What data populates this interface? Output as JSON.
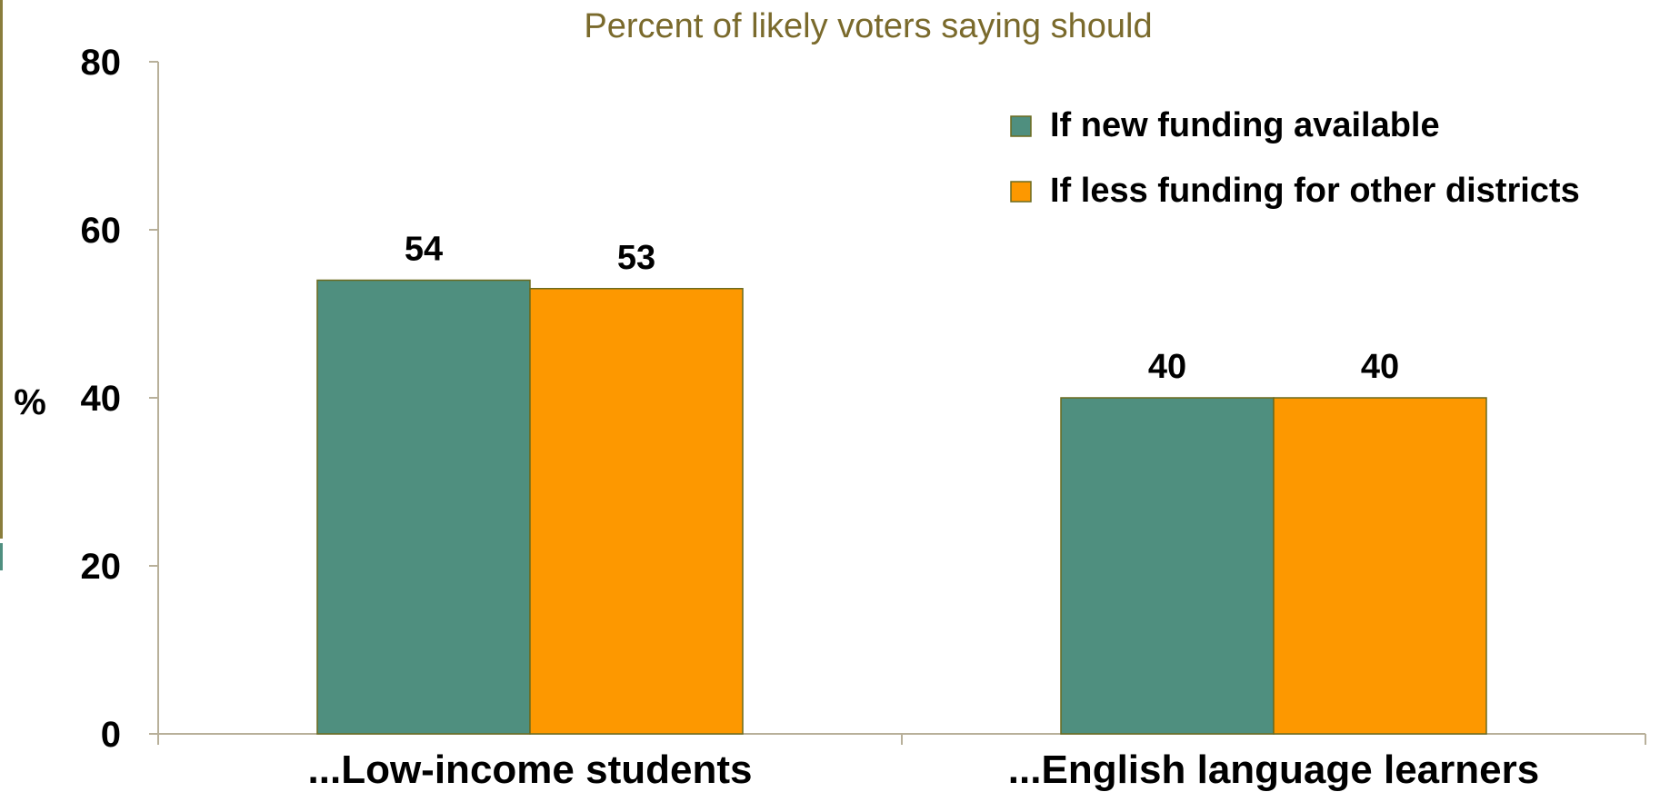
{
  "chart_data": {
    "type": "bar",
    "title": "Percent of likely voters saying should",
    "ylabel": "%",
    "xlabel": "",
    "ylim": [
      0,
      80
    ],
    "yticks": [
      "0",
      "20",
      "40",
      "60",
      "80"
    ],
    "categories": [
      "...Low-income students",
      "...English language learners"
    ],
    "series": [
      {
        "name": "If new funding available",
        "values": [
          54,
          40
        ]
      },
      {
        "name": "If less funding for other districts",
        "values": [
          53,
          40
        ]
      }
    ],
    "data_labels": [
      [
        "54",
        "40"
      ],
      [
        "53",
        "40"
      ]
    ],
    "legend_position": "top-right",
    "grid": false
  },
  "colors": {
    "series": [
      "#4f8f7f",
      "#fd9800"
    ],
    "bar_stroke": "#6b6a1f",
    "title": "#7a6a2c",
    "axis": "#b8b09a",
    "text": "#000000"
  }
}
